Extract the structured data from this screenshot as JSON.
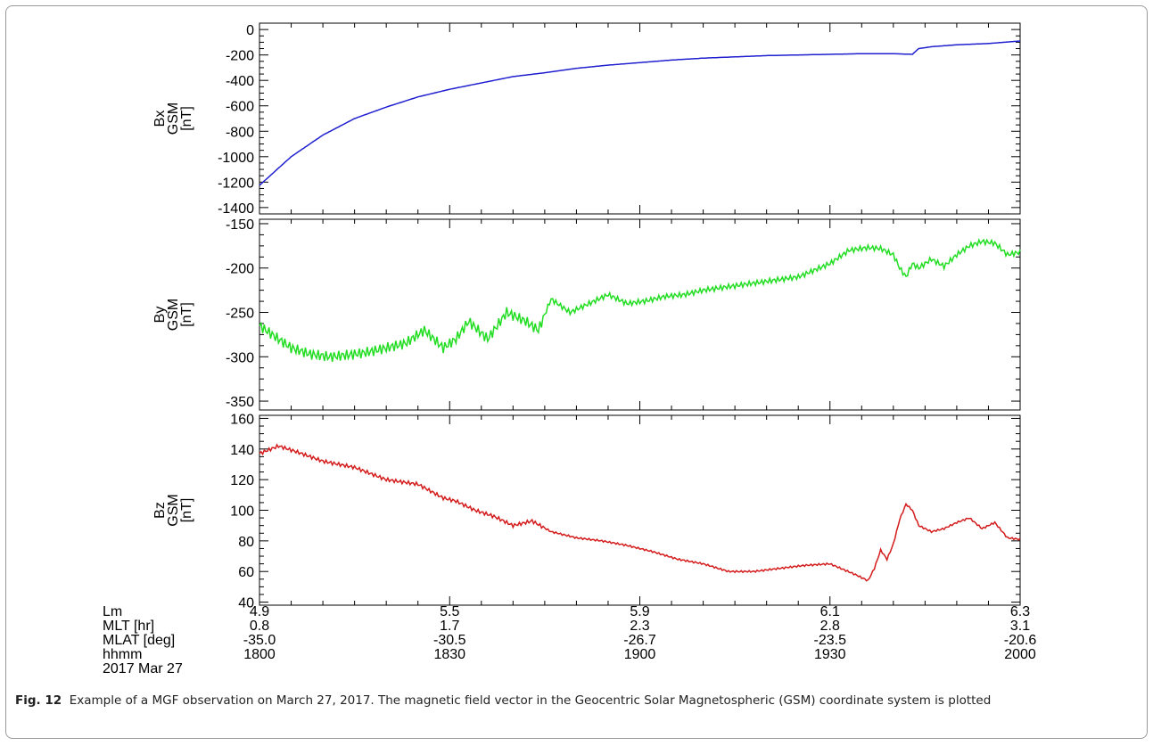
{
  "figure": {
    "caption_label": "Fig. 12",
    "caption_text": "Example of a MGF observation on March 27, 2017. The magnetic field vector in the Geocentric Solar Magnetospheric (GSM) coordinate system is plotted"
  },
  "chart_data": [
    {
      "type": "line",
      "ylabel": [
        "Bx",
        "GSM",
        "[nT]"
      ],
      "color": "#1f1fd0",
      "ylim": [
        -1450,
        50
      ],
      "yticks": [
        0,
        -200,
        -400,
        -600,
        -800,
        -1000,
        -1200,
        -1400
      ],
      "xlim": [
        0,
        120
      ],
      "grid": false,
      "x": [
        0,
        5,
        10,
        15,
        20,
        25,
        30,
        35,
        40,
        45,
        50,
        55,
        60,
        65,
        70,
        75,
        80,
        85,
        90,
        95,
        100,
        103,
        104,
        106,
        110,
        115,
        120
      ],
      "values": [
        -1225,
        -1000,
        -830,
        -700,
        -610,
        -530,
        -470,
        -420,
        -370,
        -340,
        -305,
        -280,
        -260,
        -240,
        -225,
        -215,
        -205,
        -200,
        -195,
        -190,
        -190,
        -195,
        -150,
        -135,
        -120,
        -110,
        -90
      ]
    },
    {
      "type": "line",
      "ylabel": [
        "By",
        "GSM",
        "[nT]"
      ],
      "color": "#22dd22",
      "ylim": [
        -360,
        -145
      ],
      "yticks": [
        -150,
        -200,
        -250,
        -300,
        -350
      ],
      "xlim": [
        0,
        120
      ],
      "grid": false,
      "x": [
        0,
        2,
        5,
        8,
        11,
        14,
        17,
        20,
        23,
        26,
        29,
        31,
        33,
        36,
        39,
        42,
        44,
        46,
        49,
        52,
        55,
        58,
        61,
        64,
        67,
        70,
        73,
        76,
        80,
        85,
        90,
        93,
        96,
        98,
        100,
        101,
        102,
        103,
        104,
        105,
        106,
        108,
        110,
        112,
        114,
        116,
        118,
        120
      ],
      "values": [
        -265,
        -275,
        -290,
        -297,
        -300,
        -298,
        -295,
        -290,
        -285,
        -270,
        -290,
        -280,
        -260,
        -280,
        -250,
        -260,
        -270,
        -235,
        -250,
        -240,
        -230,
        -240,
        -237,
        -232,
        -230,
        -225,
        -222,
        -219,
        -215,
        -210,
        -195,
        -180,
        -177,
        -178,
        -185,
        -200,
        -210,
        -195,
        -200,
        -195,
        -190,
        -198,
        -185,
        -175,
        -170,
        -172,
        -185,
        -182
      ]
    },
    {
      "type": "line",
      "ylabel": [
        "Bz",
        "GSM",
        "[nT]"
      ],
      "color": "#d41c1c",
      "ylim": [
        38,
        162
      ],
      "yticks": [
        160,
        140,
        120,
        100,
        80,
        60,
        40
      ],
      "xlim": [
        0,
        120
      ],
      "grid": false,
      "x": [
        0,
        3,
        6,
        10,
        15,
        20,
        25,
        29,
        31,
        34,
        37,
        40,
        43,
        46,
        50,
        54,
        58,
        62,
        66,
        70,
        74,
        78,
        82,
        86,
        90,
        94,
        96,
        97,
        98,
        99,
        100,
        101,
        102,
        103,
        104,
        106,
        108,
        110,
        112,
        114,
        116,
        118,
        120
      ],
      "values": [
        137,
        142,
        138,
        132,
        128,
        120,
        117,
        108,
        106,
        100,
        96,
        90,
        93,
        86,
        82,
        80,
        77,
        73,
        68,
        65,
        60,
        60,
        62,
        64,
        65,
        58,
        54,
        62,
        74,
        68,
        78,
        94,
        104,
        100,
        90,
        86,
        88,
        92,
        95,
        88,
        92,
        82,
        81
      ]
    }
  ],
  "x_axis": {
    "row_labels": [
      "Lm",
      "MLT [hr]",
      "MLAT [deg]",
      "hhmm",
      "2017 Mar 27"
    ],
    "x_positions": [
      0,
      30,
      60,
      90,
      120
    ],
    "rows": [
      [
        "4.9",
        "5.5",
        "5.9",
        "6.1",
        "6.3"
      ],
      [
        "0.8",
        "1.7",
        "2.3",
        "2.8",
        "3.1"
      ],
      [
        "-35.0",
        "-30.5",
        "-26.7",
        "-23.5",
        "-20.6"
      ],
      [
        "1800",
        "1830",
        "1900",
        "1930",
        "2000"
      ]
    ]
  }
}
